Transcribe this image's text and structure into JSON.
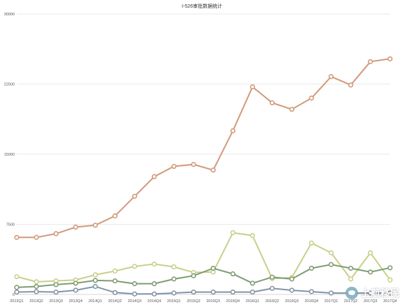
{
  "chart_data": {
    "type": "line",
    "title": "I-526审批数据统计",
    "categories": [
      "2013Q1",
      "2013Q2",
      "2013Q3",
      "2013Q4",
      "2014Q1",
      "2014Q2",
      "2014Q3",
      "2014Q4",
      "2015Q1",
      "2015Q2",
      "2015Q3",
      "2015Q4",
      "2016Q1",
      "2016Q2",
      "2016Q3",
      "2016Q4",
      "2017Q1",
      "2017Q2",
      "2017Q3",
      "2017Q4"
    ],
    "ylim": [
      0,
      30000
    ],
    "yticks": [
      0,
      7500,
      15000,
      22500,
      30000
    ],
    "grid": true,
    "legend": "none",
    "series": [
      {
        "color": "#d2987a",
        "values": [
          6100,
          6100,
          6500,
          7200,
          7400,
          8400,
          10500,
          12600,
          13700,
          13900,
          13300,
          17500,
          22200,
          20500,
          19800,
          21000,
          23300,
          22400,
          24900,
          25200
        ]
      },
      {
        "color": "#c9cf8a",
        "values": [
          1900,
          1350,
          1450,
          1550,
          2100,
          2500,
          3000,
          3250,
          2950,
          2350,
          2400,
          6600,
          6300,
          1700,
          1800,
          5500,
          4450,
          1650,
          4450,
          1550
        ]
      },
      {
        "color": "#7f9c72",
        "values": [
          750,
          850,
          1050,
          1200,
          1500,
          1450,
          1150,
          1150,
          1650,
          2000,
          2800,
          2200,
          1200,
          1850,
          1650,
          2800,
          3200,
          2800,
          2400,
          2850
        ]
      },
      {
        "color": "#8394a6",
        "values": [
          250,
          300,
          250,
          450,
          850,
          200,
          50,
          50,
          150,
          250,
          250,
          250,
          250,
          650,
          450,
          300,
          150,
          150,
          150,
          150
        ]
      }
    ]
  },
  "watermark": {
    "text": "上航移民",
    "icon": "wechat-icon"
  }
}
